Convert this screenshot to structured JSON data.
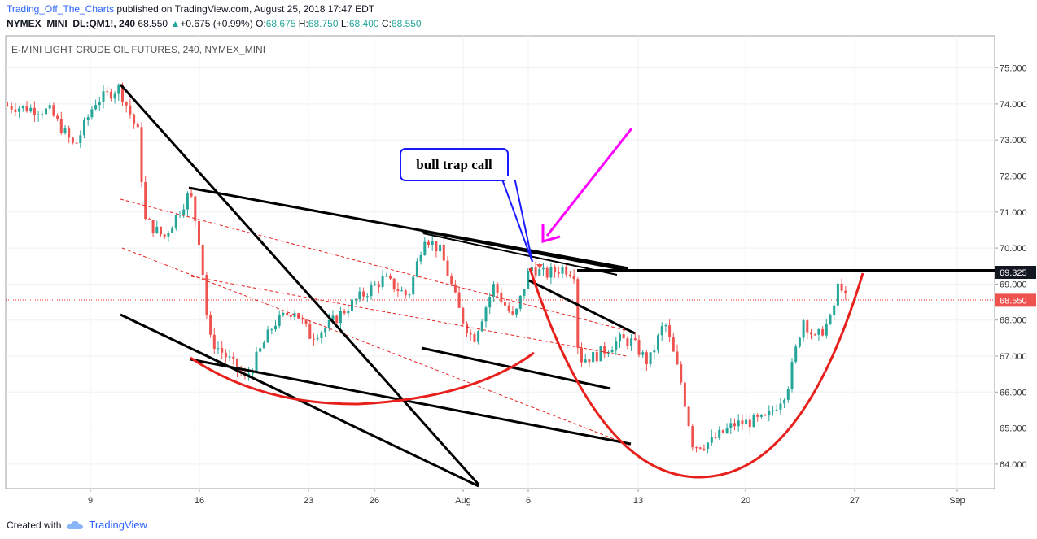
{
  "header": {
    "author": "Trading_Off_The_Charts",
    "published": "published on TradingView.com, August 25, 2018 17:47 EDT",
    "symbol": "NYMEX_MINI_DL:QM1!, 240",
    "last": "68.550",
    "change": "+0.675 (+0.99%)",
    "o_label": "O:",
    "o": "68.675",
    "h_label": "H:",
    "h": "68.750",
    "l_label": "L:",
    "l": "68.400",
    "c_label": "C:",
    "c": "68.550"
  },
  "chart_title": "E-MINI LIGHT CRUDE OIL FUTURES, 240, NYMEX_MINI",
  "annotation": "bull trap call",
  "footer": {
    "created": "Created with",
    "brand": "TradingView"
  },
  "colors": {
    "up": "#26a69a",
    "down": "#ef5350",
    "trend": "#000000",
    "curve": "#e8201c",
    "arrow": "#ff00ff",
    "callout": "#1a1aff",
    "dashed": "#e8201c"
  },
  "chart_data": {
    "type": "candlestick",
    "y_range": [
      63.4,
      75.6
    ],
    "y_ticks": [
      "64.000",
      "65.000",
      "66.000",
      "67.000",
      "68.000",
      "69.000",
      "70.000",
      "71.000",
      "72.000",
      "73.000",
      "74.000",
      "75.000"
    ],
    "x_labels": [
      "9",
      "16",
      "23",
      "26",
      "Aug",
      "6",
      "13",
      "20",
      "27",
      "Sep"
    ],
    "price_labels": [
      {
        "value": 69.325,
        "text": "69.325",
        "style": "dark"
      },
      {
        "value": 68.55,
        "text": "68.550",
        "style": "red"
      }
    ],
    "horizontal_level": 69.325,
    "current_price": 68.55,
    "key_points": [
      {
        "date": "Jul 10",
        "price": 74.5
      },
      {
        "date": "Jul 15",
        "price": 71.65
      },
      {
        "date": "Jul 16",
        "price": 67.5
      },
      {
        "date": "Jul 30",
        "price": 70.4
      },
      {
        "date": "Aug 6",
        "price": 69.5
      },
      {
        "date": "Aug 8",
        "price": 69.3
      },
      {
        "date": "Aug 16",
        "price": 64.0
      },
      {
        "date": "Aug 25",
        "price": 69.2
      },
      {
        "date": "Aug 25 close",
        "price": 68.55
      }
    ]
  }
}
